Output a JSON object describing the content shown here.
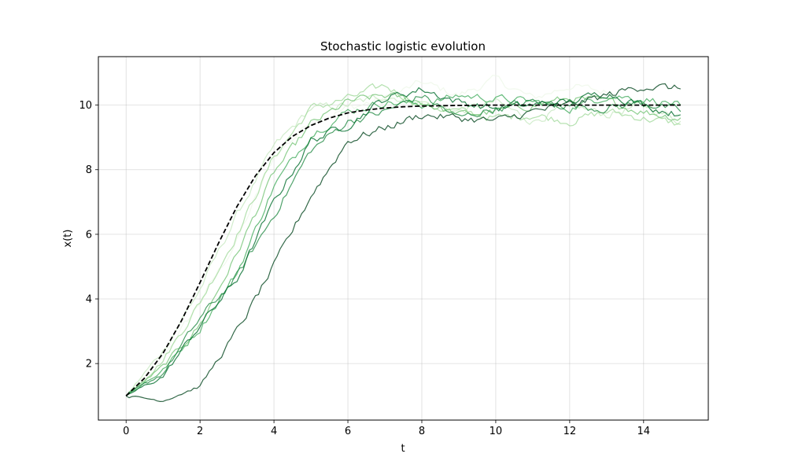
{
  "chart_data": {
    "type": "line",
    "title": "Stochastic logistic evolution",
    "xlabel": "t",
    "ylabel": "x(t)",
    "xlim": [
      -0.75,
      15.75
    ],
    "ylim": [
      0.25,
      11.5
    ],
    "xticks": [
      0,
      2,
      4,
      6,
      8,
      10,
      12,
      14
    ],
    "yticks": [
      2,
      4,
      6,
      8,
      10
    ],
    "grid": true,
    "model": {
      "x0": 1,
      "carrying_capacity": 10,
      "growth_rate": 1.0,
      "t_end": 15
    },
    "deterministic_series": {
      "style": "dashed",
      "color": "#000000",
      "x": [
        0,
        0.5,
        1,
        1.5,
        2,
        2.5,
        3,
        3.5,
        4,
        4.5,
        5,
        5.5,
        6,
        6.5,
        7,
        7.5,
        8,
        9,
        10,
        11,
        12,
        13,
        14,
        15
      ],
      "values": [
        1.0,
        1.55,
        2.32,
        3.33,
        4.51,
        5.73,
        6.86,
        7.81,
        8.53,
        9.03,
        9.37,
        9.6,
        9.76,
        9.85,
        9.91,
        9.95,
        9.97,
        9.99,
        10.0,
        10.0,
        10.0,
        10.0,
        10.0,
        10.0
      ]
    },
    "stochastic_series": [
      {
        "color": "#edf8e9",
        "values": [
          1.0,
          2.2,
          3.9,
          5.8,
          8.4,
          9.5,
          9.9,
          10.2,
          10.7,
          10.3,
          10.8,
          10.2,
          10.6,
          10.4,
          10.0,
          9.6
        ]
      },
      {
        "color": "#c7e9c0",
        "values": [
          1.0,
          2.4,
          4.3,
          6.6,
          8.7,
          9.9,
          10.0,
          10.3,
          10.1,
          9.8,
          10.1,
          9.5,
          10.0,
          9.7,
          10.0,
          9.5
        ]
      },
      {
        "color": "#a1d99b",
        "values": [
          1.0,
          2.1,
          3.9,
          6.0,
          8.4,
          9.9,
          10.2,
          10.6,
          10.0,
          9.8,
          9.6,
          9.7,
          9.5,
          9.8,
          9.6,
          9.4
        ]
      },
      {
        "color": "#74c476",
        "values": [
          1.0,
          1.9,
          3.2,
          5.4,
          7.9,
          9.4,
          10.1,
          10.3,
          10.1,
          9.7,
          9.8,
          10.0,
          10.2,
          10.1,
          9.8,
          9.6
        ]
      },
      {
        "color": "#41ab5d",
        "values": [
          1.0,
          1.8,
          3.1,
          4.8,
          7.5,
          9.1,
          9.8,
          10.1,
          10.0,
          10.3,
          10.2,
          10.1,
          9.9,
          10.3,
          10.2,
          10.0
        ]
      },
      {
        "color": "#238b45",
        "values": [
          1.0,
          1.7,
          3.4,
          4.7,
          6.6,
          8.6,
          9.5,
          9.8,
          10.3,
          9.6,
          9.9,
          10.1,
          10.0,
          9.9,
          10.1,
          9.8
        ]
      },
      {
        "color": "#006d2c",
        "values": [
          1.0,
          1.6,
          3.2,
          4.6,
          7.0,
          8.9,
          9.4,
          10.2,
          10.5,
          10.1,
          9.9,
          10.0,
          10.1,
          10.4,
          10.0,
          9.7
        ]
      },
      {
        "color": "#00441b",
        "values": [
          1.0,
          0.85,
          1.3,
          3.0,
          5.0,
          7.2,
          8.9,
          9.3,
          9.7,
          9.6,
          9.5,
          9.8,
          10.0,
          10.3,
          10.6,
          10.5
        ]
      }
    ],
    "series_x": [
      0,
      1,
      2,
      3,
      4,
      5,
      6,
      7,
      8,
      9,
      10,
      11,
      12,
      13,
      14,
      15
    ],
    "legend": "none"
  }
}
